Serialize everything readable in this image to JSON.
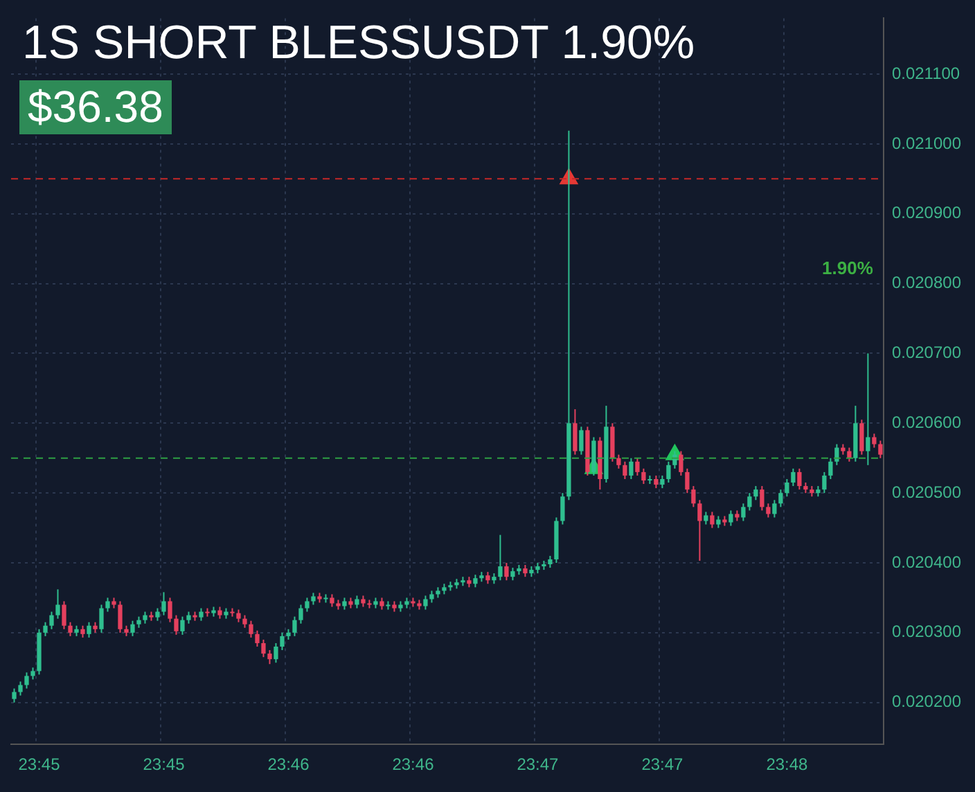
{
  "chart_data": {
    "type": "candlestick",
    "title": "1S SHORT BLESSUSDT 1.90%",
    "annotations": [
      "$36.38",
      "1.90%"
    ],
    "categories": [
      null,
      null,
      null,
      null,
      "23:45",
      null,
      null,
      null,
      null,
      null,
      null,
      null,
      null,
      null,
      null,
      null,
      null,
      null,
      null,
      null,
      null,
      null,
      null,
      null,
      "23:45",
      null,
      null,
      null,
      null,
      null,
      null,
      null,
      null,
      null,
      null,
      null,
      null,
      null,
      null,
      null,
      null,
      null,
      null,
      null,
      "23:46",
      null,
      null,
      null,
      null,
      null,
      null,
      null,
      null,
      null,
      null,
      null,
      null,
      null,
      null,
      null,
      null,
      null,
      null,
      null,
      "23:46",
      null,
      null,
      null,
      null,
      null,
      null,
      null,
      null,
      null,
      null,
      null,
      null,
      null,
      null,
      null,
      null,
      null,
      null,
      null,
      "23:47",
      null,
      null,
      null,
      null,
      null,
      null,
      null,
      null,
      null,
      null,
      null,
      null,
      null,
      null,
      null,
      null,
      null,
      null,
      null,
      "23:47",
      null,
      null,
      null,
      null,
      null,
      null,
      null,
      null,
      null,
      null,
      null,
      null,
      null,
      null,
      null,
      null,
      null,
      null,
      null,
      "23:48",
      null,
      null,
      null,
      null,
      null,
      null,
      null,
      null,
      null,
      null,
      null,
      null,
      null,
      null,
      null
    ],
    "series": [
      {
        "ohlc": [
          [
            0.020205,
            0.02022,
            0.0202,
            0.020215
          ],
          [
            0.020215,
            0.02023,
            0.02021,
            0.020225
          ],
          [
            0.020225,
            0.020243,
            0.02022,
            0.020238
          ],
          [
            0.020238,
            0.02025,
            0.020233,
            0.020245
          ],
          [
            0.020245,
            0.020305,
            0.02024,
            0.0203
          ],
          [
            0.0203,
            0.020315,
            0.020295,
            0.02031
          ],
          [
            0.02031,
            0.02033,
            0.020305,
            0.020325
          ],
          [
            0.020325,
            0.020362,
            0.02032,
            0.02034
          ],
          [
            0.02034,
            0.020345,
            0.020305,
            0.02031
          ],
          [
            0.02031,
            0.020315,
            0.020295,
            0.0203
          ],
          [
            0.0203,
            0.02031,
            0.020295,
            0.020305
          ],
          [
            0.020305,
            0.02031,
            0.020293,
            0.020298
          ],
          [
            0.020298,
            0.020315,
            0.020293,
            0.02031
          ],
          [
            0.02031,
            0.020315,
            0.0203,
            0.020305
          ],
          [
            0.020305,
            0.02034,
            0.0203,
            0.020335
          ],
          [
            0.020335,
            0.02035,
            0.02033,
            0.020345
          ],
          [
            0.020345,
            0.02035,
            0.020335,
            0.02034
          ],
          [
            0.02034,
            0.020345,
            0.0203,
            0.020305
          ],
          [
            0.020305,
            0.02031,
            0.020295,
            0.0203
          ],
          [
            0.0203,
            0.020317,
            0.020295,
            0.020312
          ],
          [
            0.020312,
            0.020323,
            0.020307,
            0.020318
          ],
          [
            0.020318,
            0.02033,
            0.020313,
            0.020325
          ],
          [
            0.020325,
            0.02033,
            0.020317,
            0.020322
          ],
          [
            0.020322,
            0.020335,
            0.020317,
            0.02033
          ],
          [
            0.02033,
            0.020358,
            0.020325,
            0.020345
          ],
          [
            0.020345,
            0.02035,
            0.020315,
            0.02032
          ],
          [
            0.02032,
            0.020325,
            0.020297,
            0.020302
          ],
          [
            0.020302,
            0.020323,
            0.020297,
            0.020318
          ],
          [
            0.020318,
            0.02033,
            0.020313,
            0.020325
          ],
          [
            0.020325,
            0.02033,
            0.020317,
            0.020322
          ],
          [
            0.020322,
            0.020335,
            0.020317,
            0.02033
          ],
          [
            0.02033,
            0.020335,
            0.020323,
            0.020328
          ],
          [
            0.020328,
            0.020337,
            0.020323,
            0.020332
          ],
          [
            0.020332,
            0.020337,
            0.02032,
            0.020325
          ],
          [
            0.020325,
            0.020335,
            0.02032,
            0.02033
          ],
          [
            0.02033,
            0.020335,
            0.020323,
            0.020328
          ],
          [
            0.020328,
            0.020333,
            0.020315,
            0.02032
          ],
          [
            0.02032,
            0.020325,
            0.020307,
            0.020312
          ],
          [
            0.020312,
            0.020317,
            0.020293,
            0.020298
          ],
          [
            0.020298,
            0.020303,
            0.02028,
            0.020285
          ],
          [
            0.020285,
            0.02029,
            0.020265,
            0.02027
          ],
          [
            0.02027,
            0.020275,
            0.020255,
            0.020262
          ],
          [
            0.020262,
            0.020285,
            0.020257,
            0.02028
          ],
          [
            0.02028,
            0.0203,
            0.020275,
            0.020295
          ],
          [
            0.020295,
            0.020305,
            0.02029,
            0.0203
          ],
          [
            0.0203,
            0.020323,
            0.020295,
            0.020318
          ],
          [
            0.020318,
            0.02034,
            0.020313,
            0.020335
          ],
          [
            0.020335,
            0.02035,
            0.02033,
            0.020345
          ],
          [
            0.020345,
            0.020357,
            0.02034,
            0.020352
          ],
          [
            0.020352,
            0.020357,
            0.020343,
            0.020348
          ],
          [
            0.020348,
            0.020355,
            0.020343,
            0.02035
          ],
          [
            0.02035,
            0.020355,
            0.020337,
            0.020342
          ],
          [
            0.020342,
            0.020347,
            0.020333,
            0.020338
          ],
          [
            0.020338,
            0.02035,
            0.020333,
            0.020345
          ],
          [
            0.020345,
            0.02035,
            0.020335,
            0.02034
          ],
          [
            0.02034,
            0.020353,
            0.020335,
            0.020348
          ],
          [
            0.020348,
            0.020353,
            0.020337,
            0.020342
          ],
          [
            0.020342,
            0.020347,
            0.020335,
            0.02034
          ],
          [
            0.02034,
            0.02035,
            0.020335,
            0.020345
          ],
          [
            0.020345,
            0.02035,
            0.020333,
            0.020338
          ],
          [
            0.020338,
            0.020345,
            0.020333,
            0.02034
          ],
          [
            0.02034,
            0.020345,
            0.02033,
            0.020335
          ],
          [
            0.020335,
            0.020345,
            0.02033,
            0.02034
          ],
          [
            0.02034,
            0.02035,
            0.020335,
            0.020345
          ],
          [
            0.020345,
            0.02035,
            0.020337,
            0.020342
          ],
          [
            0.020342,
            0.020347,
            0.020333,
            0.020338
          ],
          [
            0.020338,
            0.020353,
            0.020333,
            0.020348
          ],
          [
            0.020348,
            0.02036,
            0.020343,
            0.020355
          ],
          [
            0.020355,
            0.020365,
            0.02035,
            0.02036
          ],
          [
            0.02036,
            0.02037,
            0.020355,
            0.020365
          ],
          [
            0.020365,
            0.020373,
            0.02036,
            0.020368
          ],
          [
            0.020368,
            0.020377,
            0.020363,
            0.020372
          ],
          [
            0.020372,
            0.02038,
            0.020367,
            0.020375
          ],
          [
            0.020375,
            0.02038,
            0.020365,
            0.02037
          ],
          [
            0.02037,
            0.020383,
            0.020365,
            0.020378
          ],
          [
            0.020378,
            0.020387,
            0.020373,
            0.020382
          ],
          [
            0.020382,
            0.020387,
            0.02037,
            0.020375
          ],
          [
            0.020375,
            0.020385,
            0.02037,
            0.02038
          ],
          [
            0.02038,
            0.02044,
            0.020375,
            0.020395
          ],
          [
            0.020395,
            0.0204,
            0.020375,
            0.02038
          ],
          [
            0.02038,
            0.020393,
            0.020375,
            0.020388
          ],
          [
            0.020388,
            0.020397,
            0.020383,
            0.020392
          ],
          [
            0.020392,
            0.020397,
            0.02038,
            0.020385
          ],
          [
            0.020385,
            0.020395,
            0.02038,
            0.02039
          ],
          [
            0.02039,
            0.0204,
            0.020385,
            0.020395
          ],
          [
            0.020395,
            0.020403,
            0.02039,
            0.020398
          ],
          [
            0.020398,
            0.02041,
            0.020393,
            0.020405
          ],
          [
            0.020405,
            0.020465,
            0.0204,
            0.02046
          ],
          [
            0.02046,
            0.0205,
            0.020455,
            0.020495
          ],
          [
            0.020495,
            0.021019,
            0.02049,
            0.0206
          ],
          [
            0.0206,
            0.02062,
            0.020555,
            0.02056
          ],
          [
            0.02056,
            0.020595,
            0.020555,
            0.02059
          ],
          [
            0.02059,
            0.020595,
            0.020525,
            0.02053
          ],
          [
            0.02053,
            0.02058,
            0.020525,
            0.020575
          ],
          [
            0.020575,
            0.02058,
            0.020505,
            0.02052
          ],
          [
            0.02052,
            0.020625,
            0.020515,
            0.020595
          ],
          [
            0.020595,
            0.0206,
            0.020545,
            0.02055
          ],
          [
            0.02055,
            0.020555,
            0.020535,
            0.02054
          ],
          [
            0.02054,
            0.020545,
            0.02052,
            0.020525
          ],
          [
            0.020525,
            0.02055,
            0.02052,
            0.020545
          ],
          [
            0.020545,
            0.02055,
            0.020525,
            0.02053
          ],
          [
            0.02053,
            0.020535,
            0.020513,
            0.020518
          ],
          [
            0.020518,
            0.020525,
            0.020513,
            0.02052
          ],
          [
            0.02052,
            0.020525,
            0.020507,
            0.020512
          ],
          [
            0.020512,
            0.020525,
            0.020507,
            0.02052
          ],
          [
            0.02052,
            0.020545,
            0.020515,
            0.02054
          ],
          [
            0.02054,
            0.02056,
            0.020535,
            0.020555
          ],
          [
            0.020555,
            0.02056,
            0.020525,
            0.02053
          ],
          [
            0.02053,
            0.020535,
            0.0205,
            0.020505
          ],
          [
            0.020505,
            0.02051,
            0.02048,
            0.020485
          ],
          [
            0.020485,
            0.02049,
            0.020403,
            0.02046
          ],
          [
            0.02046,
            0.020473,
            0.020455,
            0.020468
          ],
          [
            0.020468,
            0.020473,
            0.02045,
            0.020455
          ],
          [
            0.020455,
            0.020467,
            0.02045,
            0.020462
          ],
          [
            0.020462,
            0.020467,
            0.020453,
            0.020458
          ],
          [
            0.020458,
            0.020475,
            0.020453,
            0.02047
          ],
          [
            0.02047,
            0.020475,
            0.02046,
            0.020465
          ],
          [
            0.020465,
            0.020485,
            0.02046,
            0.02048
          ],
          [
            0.02048,
            0.0205,
            0.020475,
            0.020495
          ],
          [
            0.020495,
            0.02051,
            0.02049,
            0.020505
          ],
          [
            0.020505,
            0.02051,
            0.020475,
            0.02048
          ],
          [
            0.02048,
            0.020485,
            0.020465,
            0.02047
          ],
          [
            0.02047,
            0.02049,
            0.020465,
            0.020485
          ],
          [
            0.020485,
            0.020505,
            0.02048,
            0.0205
          ],
          [
            0.0205,
            0.02052,
            0.020495,
            0.020515
          ],
          [
            0.020515,
            0.020535,
            0.02051,
            0.02053
          ],
          [
            0.02053,
            0.020535,
            0.020505,
            0.02051
          ],
          [
            0.02051,
            0.020515,
            0.0205,
            0.020505
          ],
          [
            0.020505,
            0.02051,
            0.020495,
            0.0205
          ],
          [
            0.0205,
            0.02051,
            0.020495,
            0.020505
          ],
          [
            0.020505,
            0.02053,
            0.0205,
            0.020525
          ],
          [
            0.020525,
            0.02055,
            0.02052,
            0.020545
          ],
          [
            0.020545,
            0.02057,
            0.02054,
            0.020565
          ],
          [
            0.020565,
            0.02057,
            0.020555,
            0.02056
          ],
          [
            0.02056,
            0.020565,
            0.020545,
            0.02055
          ],
          [
            0.02055,
            0.020625,
            0.020545,
            0.0206
          ],
          [
            0.0206,
            0.020605,
            0.020555,
            0.02056
          ],
          [
            0.02056,
            0.0207,
            0.02054,
            0.02058
          ],
          [
            0.02058,
            0.020585,
            0.020565,
            0.02057
          ],
          [
            0.02057,
            0.020575,
            0.02055,
            0.020555
          ]
        ]
      },
      {
        "type": "scatter",
        "color": "#e53935",
        "marker": "triangle",
        "values": [
          null,
          null,
          null,
          null,
          null,
          null,
          null,
          null,
          null,
          null,
          null,
          null,
          null,
          null,
          null,
          null,
          null,
          null,
          null,
          null,
          null,
          null,
          null,
          null,
          null,
          null,
          null,
          null,
          null,
          null,
          null,
          null,
          null,
          null,
          null,
          null,
          null,
          null,
          null,
          null,
          null,
          null,
          null,
          null,
          null,
          null,
          null,
          null,
          null,
          null,
          null,
          null,
          null,
          null,
          null,
          null,
          null,
          null,
          null,
          null,
          null,
          null,
          null,
          null,
          null,
          null,
          null,
          null,
          null,
          null,
          null,
          null,
          null,
          null,
          null,
          null,
          null,
          null,
          null,
          null,
          null,
          null,
          null,
          null,
          null,
          null,
          null,
          null,
          null,
          0.02095,
          null,
          null,
          null,
          null,
          null,
          null,
          null,
          null,
          null,
          null,
          null,
          null,
          null,
          null,
          null,
          null,
          null,
          null,
          null,
          null,
          null,
          null,
          null,
          null,
          null,
          null,
          null,
          null,
          null,
          null,
          null,
          null,
          null,
          null,
          null,
          null,
          null,
          null,
          null,
          null,
          null,
          null,
          null,
          null,
          null,
          null,
          null,
          null,
          null,
          null
        ]
      },
      {
        "type": "scatter",
        "color": "#22c55e",
        "marker": "triangle",
        "values": [
          null,
          null,
          null,
          null,
          null,
          null,
          null,
          null,
          null,
          null,
          null,
          null,
          null,
          null,
          null,
          null,
          null,
          null,
          null,
          null,
          null,
          null,
          null,
          null,
          null,
          null,
          null,
          null,
          null,
          null,
          null,
          null,
          null,
          null,
          null,
          null,
          null,
          null,
          null,
          null,
          null,
          null,
          null,
          null,
          null,
          null,
          null,
          null,
          null,
          null,
          null,
          null,
          null,
          null,
          null,
          null,
          null,
          null,
          null,
          null,
          null,
          null,
          null,
          null,
          null,
          null,
          null,
          null,
          null,
          null,
          null,
          null,
          null,
          null,
          null,
          null,
          null,
          null,
          null,
          null,
          null,
          null,
          null,
          null,
          null,
          null,
          null,
          null,
          null,
          null,
          null,
          null,
          null,
          0.020535,
          null,
          null,
          null,
          null,
          null,
          null,
          null,
          null,
          null,
          null,
          null,
          null,
          0.020555,
          null,
          null,
          null,
          null,
          null,
          null,
          null,
          null,
          null,
          null,
          null,
          null,
          null,
          null,
          null,
          null,
          null,
          null,
          null,
          null,
          null,
          null,
          null,
          null,
          null,
          null,
          null,
          null,
          null,
          null,
          null,
          null,
          null
        ]
      }
    ],
    "ref_lines": [
      {
        "axis": "y",
        "value": 0.02095,
        "color": "#c62828",
        "line_style": "dashed"
      },
      {
        "axis": "y",
        "value": 0.02055,
        "color": "#2ea043",
        "line_style": "dashed"
      }
    ],
    "ylim": [
      0.02014,
      0.02118
    ],
    "yticks": [
      {
        "value": 0.0202,
        "label": "0.020200"
      },
      {
        "value": 0.0203,
        "label": "0.020300"
      },
      {
        "value": 0.0204,
        "label": "0.020400"
      },
      {
        "value": 0.0205,
        "label": "0.020500"
      },
      {
        "value": 0.0206,
        "label": "0.020600"
      },
      {
        "value": 0.0207,
        "label": "0.020700"
      },
      {
        "value": 0.0208,
        "label": "0.020800"
      },
      {
        "value": 0.0209,
        "label": "0.020900"
      },
      {
        "value": 0.021,
        "label": "0.021000"
      },
      {
        "value": 0.0211,
        "label": "0.021100"
      }
    ],
    "grid": true,
    "legend": false
  }
}
